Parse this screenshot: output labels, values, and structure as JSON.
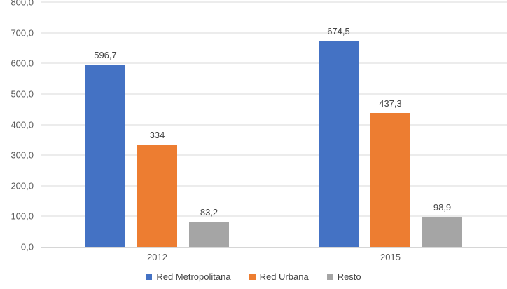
{
  "chart_data": {
    "type": "bar",
    "title": "",
    "xlabel": "",
    "ylabel": "",
    "categories": [
      "2012",
      "2015"
    ],
    "series": [
      {
        "name": "Red Metropolitana",
        "color": "#4472C4",
        "values": [
          596.7,
          674.5
        ],
        "labels": [
          "596,7",
          "674,5"
        ]
      },
      {
        "name": "Red Urbana",
        "color": "#ED7D31",
        "values": [
          334,
          437.3
        ],
        "labels": [
          "334",
          "437,3"
        ]
      },
      {
        "name": "Resto",
        "color": "#A5A5A5",
        "values": [
          83.2,
          98.9
        ],
        "labels": [
          "83,2",
          "98,9"
        ]
      }
    ],
    "ylim": [
      0,
      800
    ],
    "yticks": [
      {
        "value": 0,
        "label": "0,0"
      },
      {
        "value": 100,
        "label": "100,0"
      },
      {
        "value": 200,
        "label": "200,0"
      },
      {
        "value": 300,
        "label": "300,0"
      },
      {
        "value": 400,
        "label": "400,0"
      },
      {
        "value": 500,
        "label": "500,0"
      },
      {
        "value": 600,
        "label": "600,0"
      },
      {
        "value": 700,
        "label": "700,0"
      },
      {
        "value": 800,
        "label": "800,0"
      }
    ],
    "grid": true,
    "legend_position": "bottom",
    "colors": {
      "gridline": "#D9D9D9",
      "axis_line": "#D6D6D6",
      "tick_text": "#595959",
      "label_text": "#444444"
    }
  }
}
